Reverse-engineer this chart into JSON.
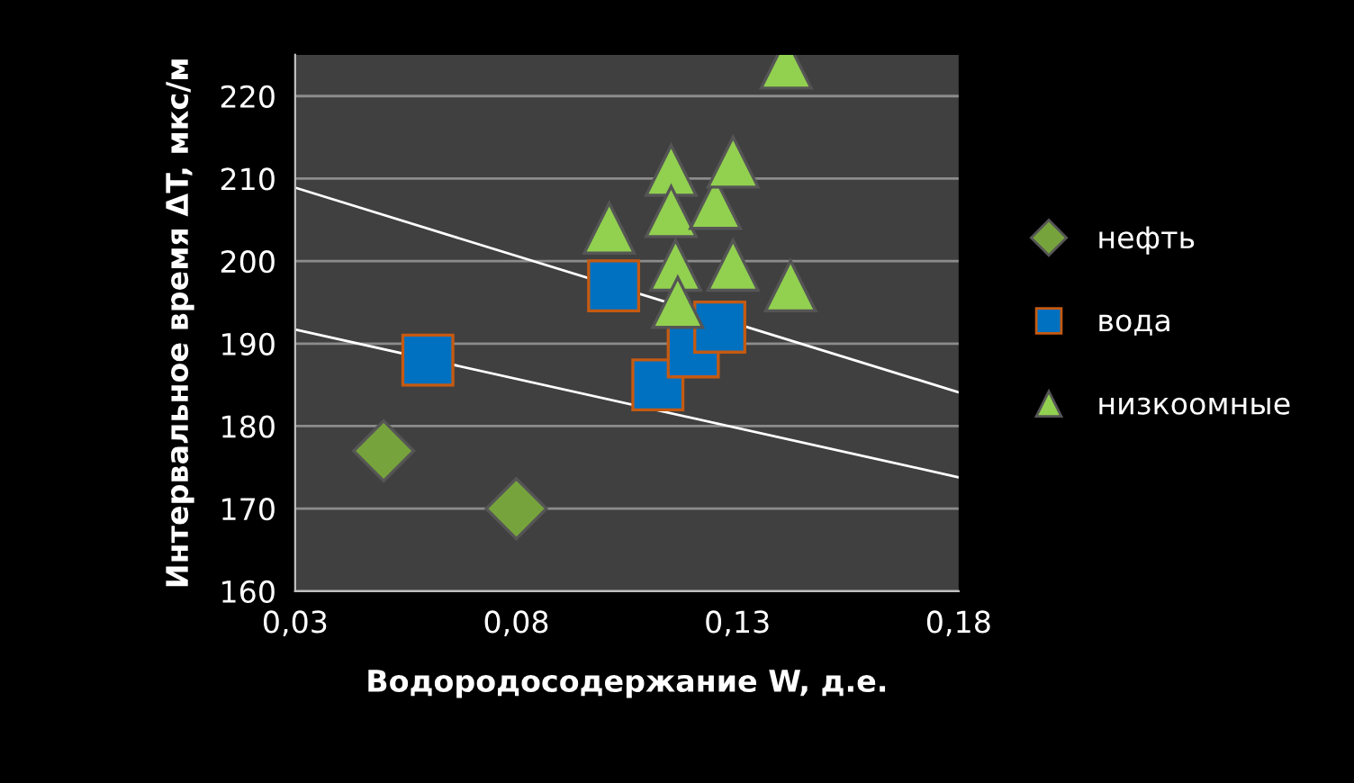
{
  "chart_data": {
    "type": "scatter",
    "xlabel": "Водородосодержание W, д.е.",
    "ylabel": "Интервальное время ΔT, мкс/м",
    "xlim": [
      0.03,
      0.18
    ],
    "xticks": [
      {
        "value": 0.03,
        "label": "0,03"
      },
      {
        "value": 0.08,
        "label": "0,08"
      },
      {
        "value": 0.13,
        "label": "0,13"
      },
      {
        "value": 0.18,
        "label": "0,18"
      }
    ],
    "ylim": [
      160,
      225
    ],
    "yticks": [
      160,
      170,
      180,
      190,
      200,
      210,
      220
    ],
    "grid": "y",
    "legend": "right",
    "series": [
      {
        "name": "нефть",
        "color": "#77a33c",
        "marker": "diamond",
        "x": [
          0.05,
          0.08
        ],
        "values": [
          177,
          170
        ]
      },
      {
        "name": "вода",
        "color": "#0070c0",
        "marker": "square",
        "x": [
          0.06,
          0.102,
          0.112,
          0.12,
          0.126
        ],
        "values": [
          188,
          197,
          185,
          189,
          192
        ]
      },
      {
        "name": "низкоомные",
        "color": "#92d050",
        "marker": "triangle",
        "x": [
          0.141,
          0.101,
          0.115,
          0.115,
          0.125,
          0.129,
          0.116,
          0.129,
          0.142,
          0.1165
        ],
        "values": [
          224,
          204,
          211,
          206,
          207,
          212,
          199.5,
          199.5,
          197,
          195
        ]
      },
      {
        "type": "line",
        "color": "#ffffff",
        "x": [
          0.03,
          0.18
        ],
        "values": [
          208.9,
          184.1
        ]
      },
      {
        "type": "line",
        "color": "#ffffff",
        "x": [
          0.03,
          0.18
        ],
        "values": [
          191.7,
          173.8
        ]
      }
    ]
  }
}
